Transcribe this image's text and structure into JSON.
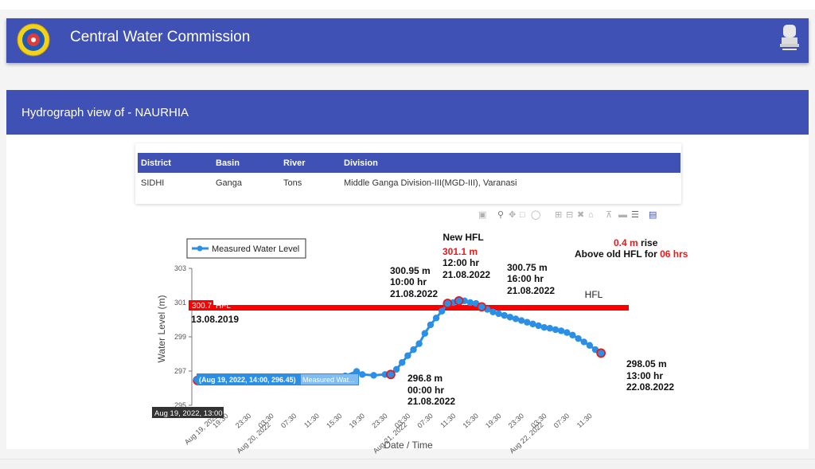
{
  "app": {
    "title": "Central Water Commission"
  },
  "page": {
    "title": "Hydrograph view of - NAURHIA"
  },
  "station_table": {
    "headers": [
      "District",
      "Basin",
      "River",
      "Division"
    ],
    "row": [
      "SIDHI",
      "Ganga",
      "Tons",
      "Middle Ganga Division-III(MGD-III), Varanasi"
    ]
  },
  "modebar": {
    "icons": [
      "camera-icon",
      "zoom-icon",
      "pan-icon",
      "box-select-icon",
      "lasso-icon",
      "zoom-in-icon",
      "zoom-out-icon",
      "autoscale-icon",
      "reset-axes-icon",
      "spike-lines-icon",
      "hover-closest-icon",
      "hover-compare-icon",
      "plotly-logo-icon"
    ]
  },
  "chart": {
    "legend_label": "Measured Water Level",
    "hfl_badge": "300.7",
    "hfl_short": "HFL",
    "hfl_date": "13.08.2019",
    "hfl_right_label": "HFL",
    "hover_value": "(Aug 19, 2022, 14:00, 296.45)",
    "hover_series": "Measured Wat...",
    "hover_x": "Aug 19, 2022, 13:00",
    "new_hfl": {
      "heading": "New HFL",
      "value": "301.1 m",
      "time": "12:00 hr",
      "date": "21.08.2022"
    },
    "ann_a": {
      "value": "300.95 m",
      "time": "10:00 hr",
      "date": "21.08.2022"
    },
    "ann_b": {
      "value": "300.75 m",
      "time": "16:00 hr",
      "date": "21.08.2022"
    },
    "ann_c": {
      "value": "296.8 m",
      "time": "00:00 hr",
      "date": "21.08.2022"
    },
    "ann_d": {
      "value": "298.05 m",
      "time": "13:00 hr",
      "date": "22.08.2022"
    },
    "rise": {
      "amount": "0.4 m",
      "word": "rise",
      "text": "Above old HFL for",
      "duration": "06 hrs"
    },
    "colors": {
      "series": "#2b8fe6",
      "hfl": "#ff0000",
      "highlight": "#e8191a",
      "hover_box": "#2b8fe6"
    }
  },
  "chart_data": {
    "type": "line",
    "title": "",
    "xlabel": "Date / Time",
    "ylabel": "Water Level (m)",
    "ylim": [
      295,
      303
    ],
    "yticks": [
      295,
      297,
      299,
      301,
      303
    ],
    "x_tick_labels": [
      "Aug 19, 2022 13:00",
      "19:30",
      "23:30",
      "03:30\nAug 20, 2022",
      "07:30",
      "11:30",
      "15:30",
      "19:30",
      "23:30",
      "03:30\nAug 21, 2022",
      "07:30",
      "11:30",
      "15:30",
      "19:30",
      "23:30",
      "03:30\nAug 22, 2022",
      "07:30",
      "11:30"
    ],
    "legend_position": "top-left",
    "hfl_level": 300.7,
    "series": [
      {
        "name": "Measured Water Level",
        "x": [
          "2022-08-19 14:00",
          "2022-08-20 11:00",
          "2022-08-20 13:00",
          "2022-08-20 15:00",
          "2022-08-20 16:00",
          "2022-08-20 18:00",
          "2022-08-20 19:00",
          "2022-08-20 21:00",
          "2022-08-20 23:00",
          "2022-08-21 00:00",
          "2022-08-21 01:00",
          "2022-08-21 02:00",
          "2022-08-21 03:00",
          "2022-08-21 04:00",
          "2022-08-21 05:00",
          "2022-08-21 06:00",
          "2022-08-21 07:00",
          "2022-08-21 08:00",
          "2022-08-21 09:00",
          "2022-08-21 10:00",
          "2022-08-21 11:00",
          "2022-08-21 12:00",
          "2022-08-21 13:00",
          "2022-08-21 14:00",
          "2022-08-21 15:00",
          "2022-08-21 16:00",
          "2022-08-21 17:00",
          "2022-08-21 18:00",
          "2022-08-21 19:00",
          "2022-08-21 20:00",
          "2022-08-21 21:00",
          "2022-08-21 22:00",
          "2022-08-21 23:00",
          "2022-08-22 00:00",
          "2022-08-22 01:00",
          "2022-08-22 02:00",
          "2022-08-22 03:00",
          "2022-08-22 04:00",
          "2022-08-22 05:00",
          "2022-08-22 06:00",
          "2022-08-22 07:00",
          "2022-08-22 08:00",
          "2022-08-22 09:00",
          "2022-08-22 10:00",
          "2022-08-22 11:00",
          "2022-08-22 12:00",
          "2022-08-22 13:00"
        ],
        "y": [
          296.45,
          296.6,
          296.62,
          296.65,
          296.72,
          296.98,
          296.8,
          296.75,
          296.8,
          296.8,
          297.1,
          297.5,
          297.9,
          298.25,
          298.6,
          299.2,
          299.7,
          300.1,
          300.5,
          300.95,
          301.0,
          301.1,
          301.1,
          301.0,
          300.95,
          300.75,
          300.6,
          300.45,
          300.35,
          300.25,
          300.15,
          300.05,
          299.95,
          299.85,
          299.75,
          299.65,
          299.55,
          299.5,
          299.42,
          299.35,
          299.25,
          299.1,
          298.9,
          298.7,
          298.5,
          298.25,
          298.05
        ]
      }
    ],
    "highlighted_points": [
      {
        "x": "2022-08-19 14:00",
        "y": 296.45
      },
      {
        "x": "2022-08-21 00:00",
        "y": 296.8
      },
      {
        "x": "2022-08-21 10:00",
        "y": 300.95
      },
      {
        "x": "2022-08-21 12:00",
        "y": 301.1
      },
      {
        "x": "2022-08-21 16:00",
        "y": 300.75
      },
      {
        "x": "2022-08-22 13:00",
        "y": 298.05
      }
    ]
  }
}
